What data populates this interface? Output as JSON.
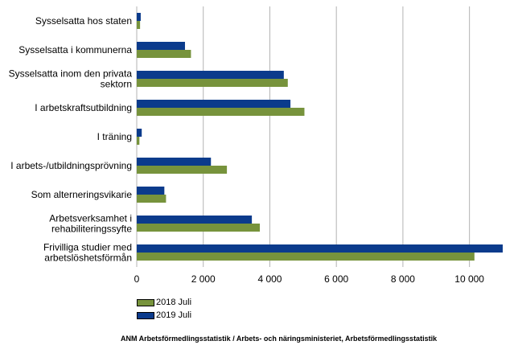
{
  "chart_data": {
    "type": "bar",
    "orientation": "horizontal",
    "categories": [
      "Sysselsatta hos staten",
      "Sysselsatta i kommunerna",
      "Sysselsatta inom den privata sektorn",
      "I arbetskraftsutbildning",
      "I träning",
      "I arbets-/utbildningsprövning",
      "Som alterneringsvikarie",
      "Arbetsverksamhet i rehabiliteringssyfte",
      "Frivilliga studier med arbetslöshetsförmån"
    ],
    "category_lines": [
      [
        "Sysselsatta hos staten"
      ],
      [
        "Sysselsatta i kommunerna"
      ],
      [
        "Sysselsatta inom den privata",
        "sektorn"
      ],
      [
        "I arbetskraftsutbildning"
      ],
      [
        "I träning"
      ],
      [
        "I arbets-/utbildningsprövning"
      ],
      [
        "Som alterneringsvikarie"
      ],
      [
        "Arbetsverksamhet i",
        "rehabiliteringssyfte"
      ],
      [
        "Frivilliga studier med",
        "arbetslöshetsförmån"
      ]
    ],
    "series": [
      {
        "name": "2019 Juli",
        "color": "#0b3b8c",
        "values": [
          120,
          1450,
          4420,
          4620,
          150,
          2230,
          830,
          3460,
          11000
        ]
      },
      {
        "name": "2018 Juli",
        "color": "#77933c",
        "values": [
          100,
          1630,
          4540,
          5040,
          80,
          2710,
          880,
          3700,
          10150
        ]
      }
    ],
    "xlim": [
      0,
      11000
    ],
    "xticks": [
      0,
      2000,
      4000,
      6000,
      8000,
      10000
    ],
    "xtick_labels": [
      "0",
      "2 000",
      "4 000",
      "6 000",
      "8 000",
      "10 000"
    ],
    "grid": true,
    "legend_position": "bottom-left",
    "title": "",
    "xlabel": "",
    "ylabel": ""
  },
  "legend": [
    {
      "label": "2018 Juli",
      "color": "#77933c"
    },
    {
      "label": "2019 Juli",
      "color": "#0b3b8c"
    }
  ],
  "source": "ANM Arbetsförmedlingsstatistik / Arbets- och näringsministeriet, Arbetsförmedlingsstatistik"
}
